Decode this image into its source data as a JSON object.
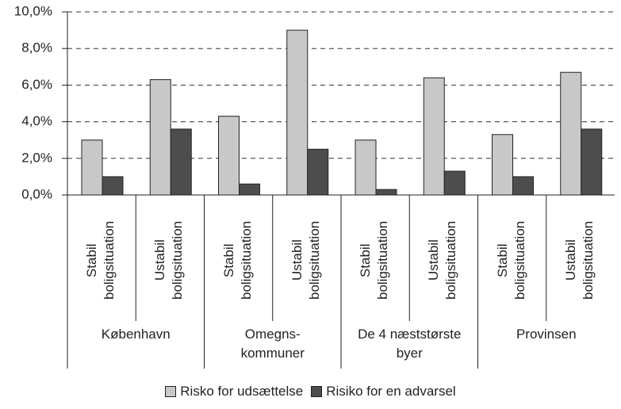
{
  "chart_data": {
    "type": "bar",
    "categories": [
      "Stabil boligsituation",
      "Ustabil boligsituation",
      "Stabil boligsituation",
      "Ustabil boligsituation",
      "Stabil boligsituation",
      "Ustabil boligsituation",
      "Stabil boligsituation",
      "Ustabil boligsituation"
    ],
    "groups": [
      "København",
      "Omegns-kommuner",
      "De 4 næststørste byer",
      "Provinsen"
    ],
    "series": [
      {
        "name": "Risko for udsættelse",
        "color": "#c8c8c8",
        "values": [
          3.0,
          6.3,
          4.3,
          9.0,
          3.0,
          6.4,
          3.3,
          6.7
        ]
      },
      {
        "name": "Risiko for en advarsel",
        "color": "#4d4d4d",
        "values": [
          1.0,
          3.6,
          0.6,
          2.5,
          0.3,
          1.3,
          1.0,
          3.6
        ]
      }
    ],
    "ylim": [
      0,
      10
    ],
    "yticks": [
      {
        "value": 0,
        "label": "0,0%"
      },
      {
        "value": 2,
        "label": "2,0%"
      },
      {
        "value": 4,
        "label": "4,0%"
      },
      {
        "value": 6,
        "label": "6,0%"
      },
      {
        "value": 8,
        "label": "8,0%"
      },
      {
        "value": 10,
        "label": "10,0%"
      }
    ],
    "grid": true,
    "legend": "bottom"
  }
}
